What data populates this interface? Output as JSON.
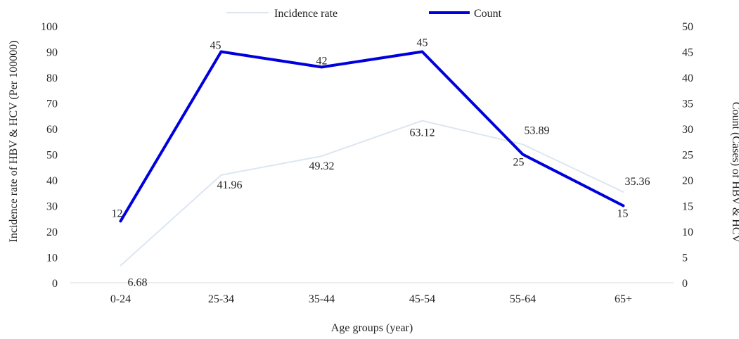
{
  "chart_data": {
    "type": "line",
    "categories": [
      "0-24",
      "25-34",
      "35-44",
      "45-54",
      "55-64",
      "65+"
    ],
    "xlabel": "Age groups (year)",
    "ylabel_left": "Incidence rate of  HBV & HCV (Per 100000)",
    "ylabel_right": "Count (Cases)  of  HBV & HCV",
    "ylim_left": [
      0,
      100
    ],
    "ylim_right": [
      0,
      50
    ],
    "yticks_left": [
      0,
      10,
      20,
      30,
      40,
      50,
      60,
      70,
      80,
      90,
      100
    ],
    "yticks_right": [
      0,
      5,
      10,
      15,
      20,
      25,
      30,
      35,
      40,
      45,
      50
    ],
    "legend_position": "top",
    "series": [
      {
        "name": "Incidence rate",
        "axis": "left",
        "color": "#dce6f1",
        "values": [
          6.68,
          41.96,
          49.32,
          63.12,
          53.89,
          35.36
        ],
        "labels": [
          "6.68",
          "41.96",
          "49.32",
          "63.12",
          "53.89",
          "35.36"
        ]
      },
      {
        "name": "Count",
        "axis": "right",
        "color": "#0000dd",
        "values": [
          12,
          45,
          42,
          45,
          25,
          15
        ],
        "labels": [
          "12",
          "45",
          "42",
          "45",
          "25",
          "15"
        ]
      }
    ]
  }
}
